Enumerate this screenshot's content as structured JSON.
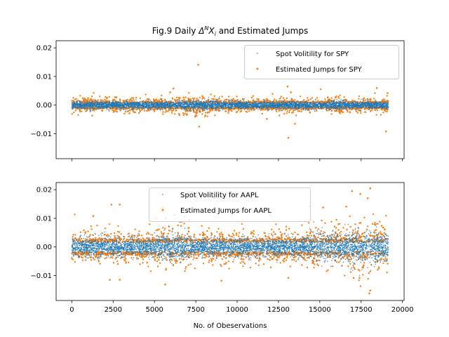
{
  "figure": {
    "title_prefix": "Fig.9 Daily ",
    "title_delta": "Δ",
    "title_sup": "N",
    "title_x": "X",
    "title_sub": "i",
    "title_suffix": " and Estimated Jumps"
  },
  "colors": {
    "spot": "#1f77b4",
    "jumps": "#ff7f0e"
  },
  "chart_data": [
    {
      "type": "scatter",
      "title": "Fig.9 Daily Δ^N X_i and Estimated Jumps",
      "xlabel": "",
      "ylabel": "",
      "xlim": [
        -950,
        20100
      ],
      "ylim": [
        -0.0187,
        0.0225
      ],
      "xticks": [
        0,
        2500,
        5000,
        7500,
        10000,
        12500,
        15000,
        17500,
        20000
      ],
      "xtick_labels_visible": false,
      "yticks": [
        -0.01,
        0.0,
        0.01,
        0.02
      ],
      "ytick_labels": [
        "−0.01",
        "0.00",
        "0.01",
        "0.02"
      ],
      "legend_position": "top-right",
      "x_range": [
        0,
        19140
      ],
      "series": [
        {
          "name": "Spot Volitility for SPY",
          "marker": "small dot",
          "typical_range": [
            -0.001,
            0.001
          ],
          "description_values": "dense band around 0 with std ≈ 0.0007"
        },
        {
          "name": "Estimated Jumps for SPY",
          "marker": "dot",
          "typical_range": [
            -0.002,
            0.003
          ],
          "outliers": [
            [
              7650,
              0.0141
            ],
            [
              7700,
              -0.0075
            ],
            [
              13050,
              0.0065
            ],
            [
              13100,
              -0.0114
            ],
            [
              13250,
              0.0045
            ],
            [
              13500,
              -0.0065
            ],
            [
              18450,
              0.006
            ],
            [
              19000,
              -0.0092
            ],
            [
              19100,
              0.0042
            ],
            [
              11800,
              -0.0048
            ],
            [
              6150,
              0.0058
            ],
            [
              5950,
              0.0045
            ]
          ]
        }
      ]
    },
    {
      "type": "scatter",
      "xlabel": "No. of Obeservations",
      "ylabel": "",
      "xlim": [
        -950,
        20100
      ],
      "ylim": [
        -0.0187,
        0.0225
      ],
      "xticks": [
        0,
        2500,
        5000,
        7500,
        10000,
        12500,
        15000,
        17500,
        20000
      ],
      "xtick_labels": [
        "0",
        "2500",
        "5000",
        "7500",
        "10000",
        "12500",
        "15000",
        "17500",
        "20000"
      ],
      "yticks": [
        -0.01,
        0.0,
        0.01,
        0.02
      ],
      "ytick_labels": [
        "−0.01",
        "0.00",
        "0.01",
        "0.02"
      ],
      "legend_position": "top-center",
      "x_range": [
        0,
        19140
      ],
      "series": [
        {
          "name": "Spot Volitility for AAPL",
          "marker": "small dot",
          "typical_range": [
            -0.003,
            0.003
          ],
          "description_values": "dense band around 0 with std ≈ 0.0018, wider near 5000-7000 and 15000-19000"
        },
        {
          "name": "Estimated Jumps for AAPL",
          "marker": "dot",
          "typical_range": [
            -0.005,
            0.005
          ],
          "outliers": [
            [
              18050,
              0.0205
            ],
            [
              18000,
              -0.0162
            ],
            [
              18050,
              -0.0152
            ],
            [
              17450,
              0.0185
            ],
            [
              17400,
              -0.0108
            ],
            [
              16950,
              0.0195
            ],
            [
              17900,
              0.017
            ],
            [
              2400,
              0.0148
            ],
            [
              2900,
              0.0148
            ],
            [
              5500,
              0.0138
            ],
            [
              5650,
              -0.0131
            ],
            [
              14400,
              0.0142
            ],
            [
              15200,
              0.0138
            ],
            [
              16600,
              0.0141
            ],
            [
              1300,
              0.0108
            ],
            [
              6200,
              0.0112
            ],
            [
              12000,
              0.011
            ],
            [
              2300,
              -0.0115
            ],
            [
              2900,
              -0.0115
            ],
            [
              9050,
              -0.0118
            ],
            [
              13100,
              -0.0108
            ],
            [
              17050,
              -0.0108
            ]
          ]
        }
      ]
    }
  ]
}
